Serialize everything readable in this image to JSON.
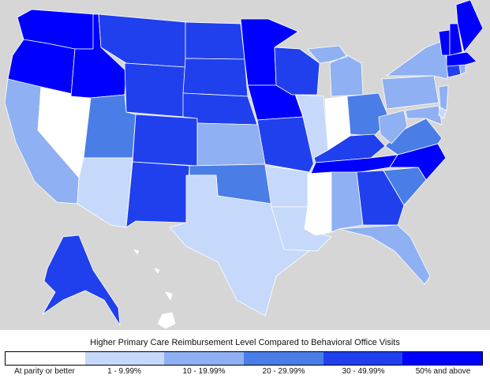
{
  "legend": {
    "title": "Higher Primary Care Reimbursement Level Compared to Behavioral Office Visits",
    "categories": [
      {
        "label": "At parity or better",
        "color": "#ffffff"
      },
      {
        "label": "1 - 9.99%",
        "color": "#c6d9fb"
      },
      {
        "label": "10 - 19.99%",
        "color": "#8fb0f2"
      },
      {
        "label": "20 - 29.99%",
        "color": "#4a7ee6"
      },
      {
        "label": "30 - 49.99%",
        "color": "#2040ee"
      },
      {
        "label": "50% and above",
        "color": "#0000ff"
      }
    ]
  },
  "background_color": "#d6d6d6"
}
